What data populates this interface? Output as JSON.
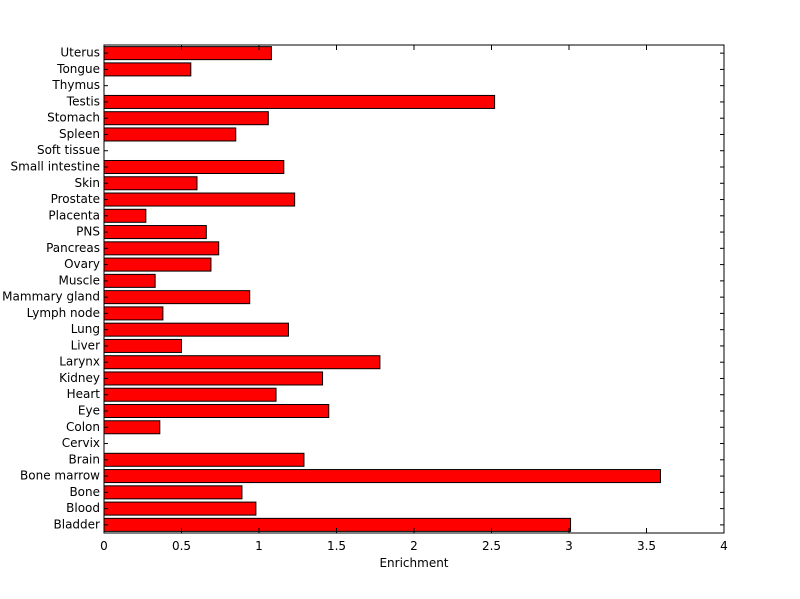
{
  "chart_data": {
    "type": "bar",
    "orientation": "horizontal",
    "title": "",
    "xlabel": "Enrichment",
    "ylabel": "",
    "xlim": [
      0,
      4
    ],
    "xticks": [
      0,
      0.5,
      1,
      1.5,
      2,
      2.5,
      3,
      3.5,
      4
    ],
    "xtick_labels": [
      "0",
      "0.5",
      "1",
      "1.5",
      "2",
      "2.5",
      "3",
      "3.5",
      "4"
    ],
    "grid": false,
    "bar_color": "#ff0000",
    "edge_color": "#000000",
    "categories": [
      "Bladder",
      "Blood",
      "Bone",
      "Bone marrow",
      "Brain",
      "Cervix",
      "Colon",
      "Eye",
      "Heart",
      "Kidney",
      "Larynx",
      "Liver",
      "Lung",
      "Lymph node",
      "Mammary gland",
      "Muscle",
      "Ovary",
      "Pancreas",
      "PNS",
      "Placenta",
      "Prostate",
      "Skin",
      "Small intestine",
      "Soft tissue",
      "Spleen",
      "Stomach",
      "Testis",
      "Thymus",
      "Tongue",
      "Uterus"
    ],
    "values": [
      3.01,
      0.98,
      0.89,
      3.59,
      1.29,
      0,
      0.36,
      1.45,
      1.11,
      1.41,
      1.78,
      0.5,
      1.19,
      0.38,
      0.94,
      0.33,
      0.69,
      0.74,
      0.66,
      0.27,
      1.23,
      0.6,
      1.16,
      0,
      0.85,
      1.06,
      2.52,
      0,
      0.56,
      1.08
    ]
  }
}
